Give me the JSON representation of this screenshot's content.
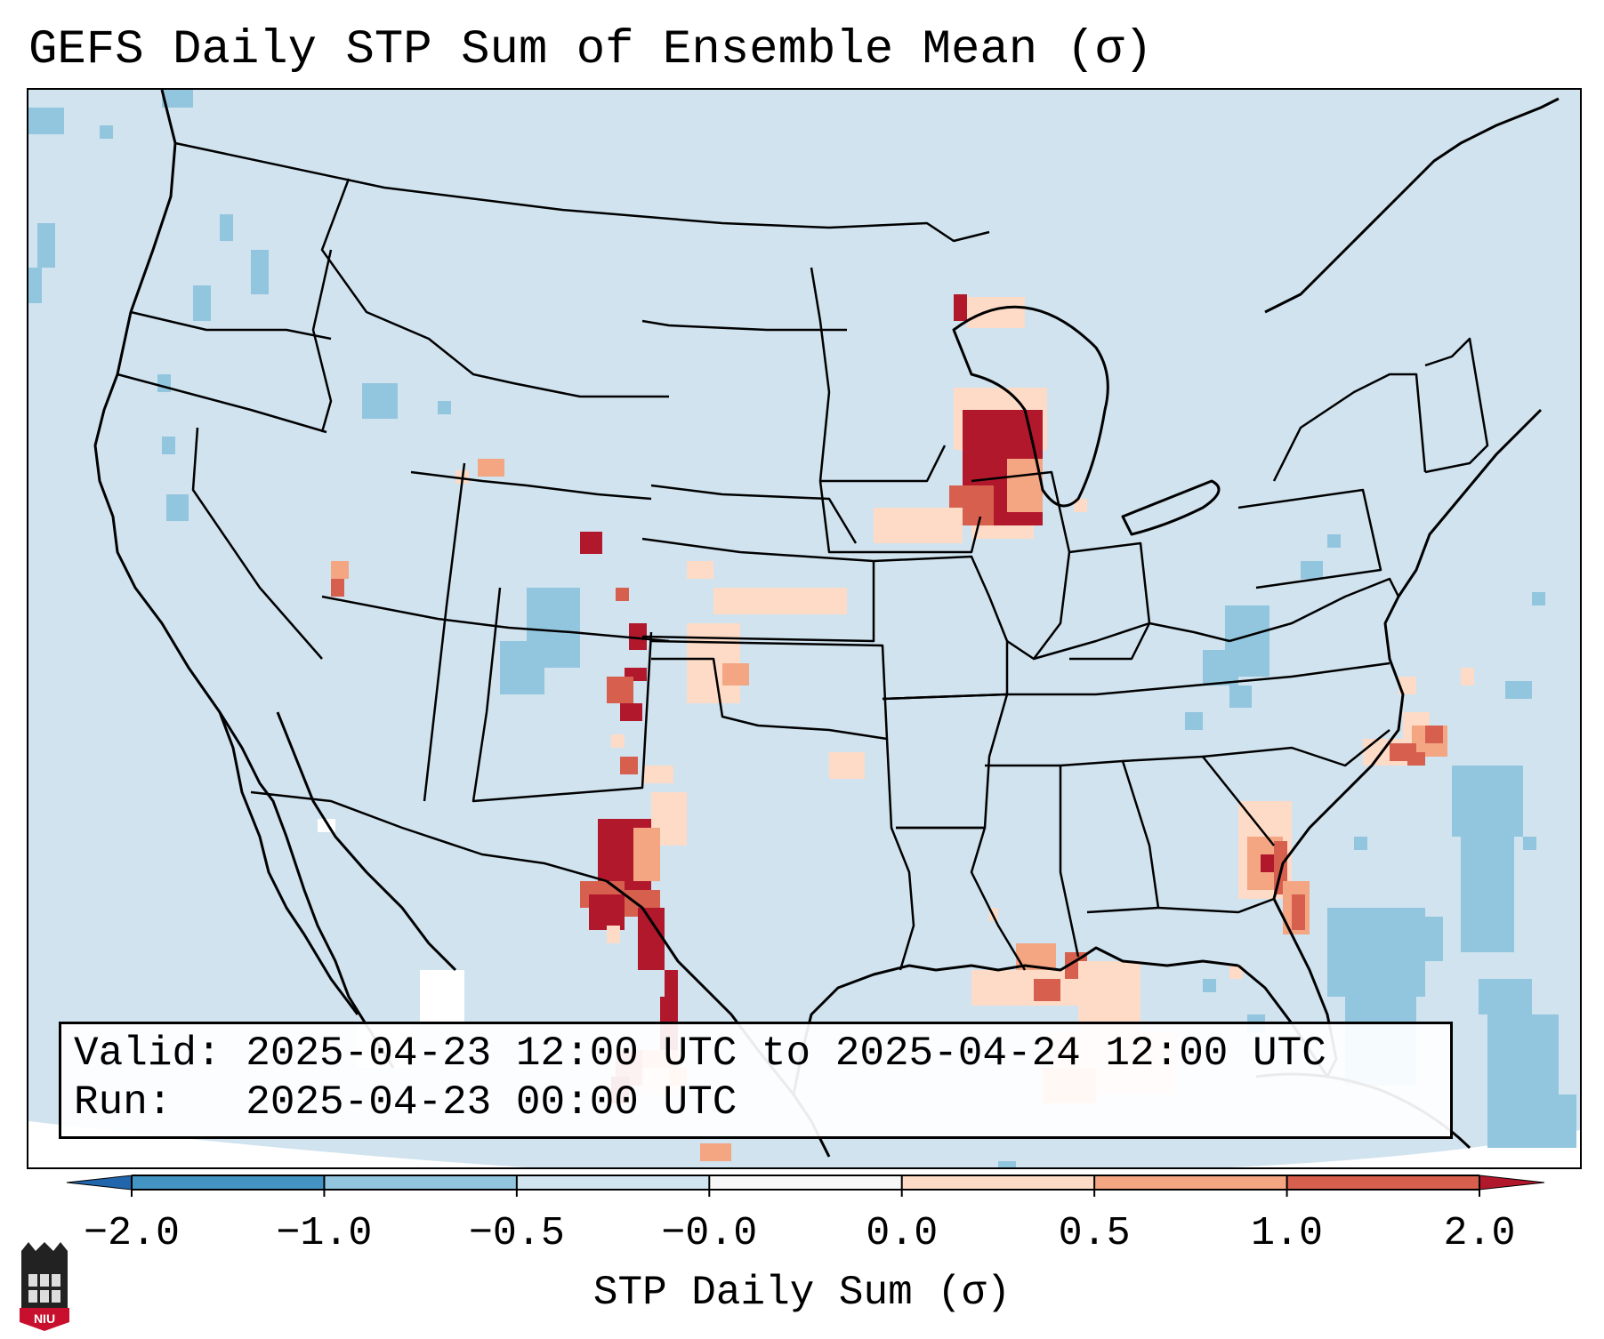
{
  "title": "GEFS Daily STP Sum of Ensemble Mean (σ)",
  "info": {
    "valid": "Valid: 2025-04-23 12:00 UTC to 2025-04-24 12:00 UTC",
    "run": "Run:   2025-04-23 00:00 UTC"
  },
  "colorbar": {
    "label": "STP Daily Sum (σ)",
    "ticks": [
      "−2.0",
      "−1.0",
      "−0.5",
      "−0.0",
      "0.0",
      "0.5",
      "1.0",
      "2.0"
    ],
    "bins": [
      {
        "from": -2.0,
        "to": -1.0,
        "color": "#4393c3"
      },
      {
        "from": -1.0,
        "to": -0.5,
        "color": "#92c5de"
      },
      {
        "from": -0.5,
        "to": -0.0,
        "color": "#d1e5f0"
      },
      {
        "from": 0.0,
        "to": 0.0,
        "color": "#f7f7f7"
      },
      {
        "from": 0.0,
        "to": 0.5,
        "color": "#fddbc7"
      },
      {
        "from": 0.5,
        "to": 1.0,
        "color": "#f4a582"
      },
      {
        "from": 1.0,
        "to": 2.0,
        "color": "#d6604d"
      }
    ],
    "extend_min_color": "#2166ac",
    "extend_max_color": "#b2182b"
  },
  "map": {
    "projection": "Lambert Conformal (CONUS)",
    "background_color": "#d0e3ef",
    "region": "Continental United States"
  },
  "logo": {
    "text": "NIU",
    "icon": "niu-logo-icon"
  }
}
